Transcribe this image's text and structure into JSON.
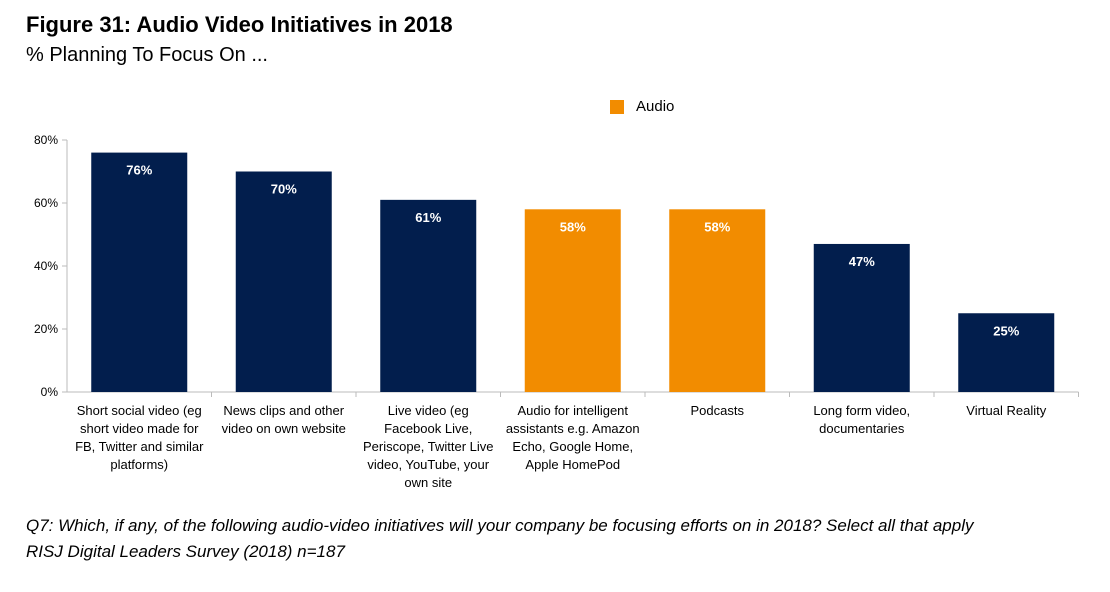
{
  "title": "Figure 31: Audio Video Initiatives in 2018",
  "subtitle": "% Planning To Focus On ...",
  "footnote": "Q7: Which, if any, of the following audio-video initiatives will your company be focusing efforts on in 2018? Select all that apply",
  "source": "RISJ Digital Leaders Survey (2018) n=187",
  "colors": {
    "video": "#021e4d",
    "audio": "#f28c00"
  },
  "chart_data": {
    "type": "bar",
    "categories": [
      "Short social video (eg short video made for FB, Twitter and similar platforms)",
      "News clips and other video on own website",
      "Live video (eg Facebook Live, Periscope, Twitter Live video, YouTube, your own site",
      "Audio for intelligent assistants e.g. Amazon Echo, Google Home, Apple HomePod",
      "Podcasts",
      "Long form video, documentaries",
      "Virtual Reality"
    ],
    "category_lines": [
      [
        "Short social video (eg",
        "short video made for",
        "FB, Twitter and similar",
        "platforms)"
      ],
      [
        "News clips and other",
        "video on own website"
      ],
      [
        "Live video (eg",
        "Facebook Live,",
        "Periscope, Twitter Live",
        "video, YouTube, your",
        "own site"
      ],
      [
        "Audio for intelligent",
        "assistants e.g. Amazon",
        "Echo, Google Home,",
        "Apple HomePod"
      ],
      [
        "Podcasts"
      ],
      [
        "Long form video,",
        "documentaries"
      ],
      [
        "Virtual Reality"
      ]
    ],
    "values": [
      76,
      70,
      61,
      58,
      58,
      47,
      25
    ],
    "data_labels": [
      "76%",
      "70%",
      "61%",
      "58%",
      "58%",
      "47%",
      "25%"
    ],
    "is_audio": [
      false,
      false,
      false,
      true,
      true,
      false,
      false
    ],
    "legend": [
      {
        "name": "Audio",
        "color": "#f28c00"
      }
    ],
    "legend_placement": "top",
    "ylim": [
      0,
      80
    ],
    "yticks": [
      "0%",
      "20%",
      "40%",
      "60%",
      "80%"
    ],
    "grid": false
  }
}
